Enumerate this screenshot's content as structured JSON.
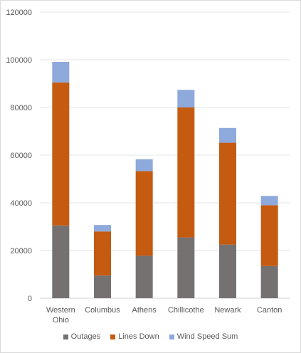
{
  "chart_data": {
    "type": "bar",
    "stacked": true,
    "categories": [
      [
        "Western",
        "Ohio"
      ],
      [
        "Columbus"
      ],
      [
        "Athens"
      ],
      [
        "Chillicothe"
      ],
      [
        "Newark"
      ],
      [
        "Canton"
      ]
    ],
    "series": [
      {
        "name": "Outages",
        "color": "#767171",
        "values": [
          30500,
          9500,
          17800,
          25500,
          22500,
          13500
        ]
      },
      {
        "name": "Lines Down",
        "color": "#C55A11",
        "values": [
          60000,
          18500,
          35500,
          54500,
          42700,
          25500
        ]
      },
      {
        "name": "Wind Speed Sum",
        "color": "#8EA9DB",
        "values": [
          8600,
          2700,
          5000,
          7400,
          6200,
          3900
        ]
      }
    ],
    "ylim": [
      0,
      120000
    ],
    "yticks": [
      0,
      20000,
      40000,
      60000,
      80000,
      100000,
      120000
    ],
    "grid": true,
    "legend_position": "bottom"
  }
}
